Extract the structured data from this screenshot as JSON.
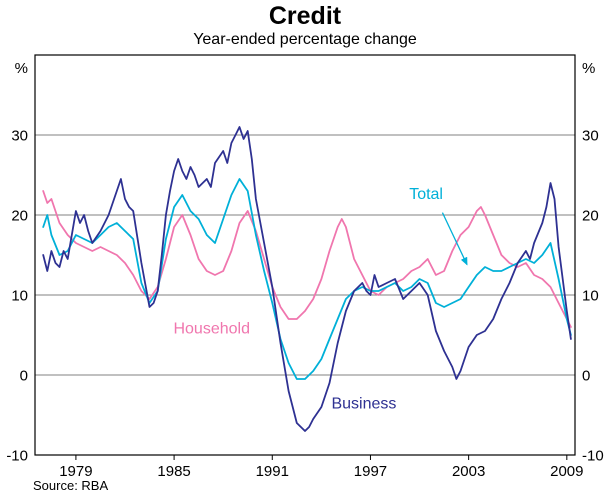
{
  "chart_data": {
    "type": "line",
    "title": "Credit",
    "subtitle": "Year-ended percentage change",
    "source": "Source: RBA",
    "unit": "%",
    "xlabel": "",
    "ylabel": "Year-ended percentage change (%)",
    "xlim": [
      1976.5,
      2009.5
    ],
    "ylim": [
      -10,
      40
    ],
    "yticks": [
      -10,
      0,
      10,
      20,
      30
    ],
    "xticks": [
      1979,
      1985,
      1991,
      1997,
      2003,
      2009
    ],
    "grid": true,
    "legend_position": "inline-annotations",
    "series": [
      {
        "name": "Household",
        "color": "#f076ae",
        "points": [
          [
            1977.0,
            23
          ],
          [
            1977.25,
            21.5
          ],
          [
            1977.5,
            22
          ],
          [
            1978.0,
            19
          ],
          [
            1978.5,
            17.5
          ],
          [
            1979.0,
            16.5
          ],
          [
            1979.5,
            16
          ],
          [
            1980.0,
            15.5
          ],
          [
            1980.5,
            16
          ],
          [
            1981.0,
            15.5
          ],
          [
            1981.5,
            15
          ],
          [
            1982.0,
            14
          ],
          [
            1982.5,
            12.5
          ],
          [
            1983.0,
            10.5
          ],
          [
            1983.5,
            9.5
          ],
          [
            1984.0,
            11
          ],
          [
            1984.5,
            14.5
          ],
          [
            1985.0,
            18.5
          ],
          [
            1985.5,
            20
          ],
          [
            1986.0,
            17.5
          ],
          [
            1986.5,
            14.5
          ],
          [
            1987.0,
            13
          ],
          [
            1987.5,
            12.5
          ],
          [
            1988.0,
            13
          ],
          [
            1988.5,
            15.5
          ],
          [
            1989.0,
            19
          ],
          [
            1989.5,
            20.5
          ],
          [
            1990.0,
            18
          ],
          [
            1990.5,
            14.5
          ],
          [
            1991.0,
            11
          ],
          [
            1991.5,
            8.5
          ],
          [
            1992.0,
            7
          ],
          [
            1992.5,
            7
          ],
          [
            1993.0,
            8
          ],
          [
            1993.5,
            9.5
          ],
          [
            1994.0,
            12
          ],
          [
            1994.5,
            15.5
          ],
          [
            1995.0,
            18.5
          ],
          [
            1995.25,
            19.5
          ],
          [
            1995.5,
            18.5
          ],
          [
            1996.0,
            14.5
          ],
          [
            1996.5,
            12.5
          ],
          [
            1997.0,
            10.5
          ],
          [
            1997.5,
            10
          ],
          [
            1998.0,
            11
          ],
          [
            1998.5,
            11.5
          ],
          [
            1999.0,
            12
          ],
          [
            1999.5,
            13
          ],
          [
            2000.0,
            13.5
          ],
          [
            2000.5,
            14.5
          ],
          [
            2001.0,
            12.5
          ],
          [
            2001.5,
            13
          ],
          [
            2002.0,
            15.5
          ],
          [
            2002.5,
            17.5
          ],
          [
            2003.0,
            18.5
          ],
          [
            2003.5,
            20.5
          ],
          [
            2003.75,
            21
          ],
          [
            2004.0,
            20
          ],
          [
            2004.5,
            17.5
          ],
          [
            2005.0,
            15
          ],
          [
            2005.5,
            14
          ],
          [
            2006.0,
            13.5
          ],
          [
            2006.5,
            14
          ],
          [
            2007.0,
            12.5
          ],
          [
            2007.5,
            12
          ],
          [
            2008.0,
            11
          ],
          [
            2008.5,
            9
          ],
          [
            2009.0,
            7
          ],
          [
            2009.25,
            6
          ]
        ]
      },
      {
        "name": "Total",
        "color": "#00b0d8",
        "points": [
          [
            1977.0,
            18.5
          ],
          [
            1977.25,
            20
          ],
          [
            1977.5,
            17.5
          ],
          [
            1978.0,
            15
          ],
          [
            1978.5,
            15.5
          ],
          [
            1979.0,
            17.5
          ],
          [
            1979.5,
            17
          ],
          [
            1980.0,
            16.5
          ],
          [
            1980.5,
            17.5
          ],
          [
            1981.0,
            18.5
          ],
          [
            1981.5,
            19
          ],
          [
            1982.0,
            18
          ],
          [
            1982.5,
            17
          ],
          [
            1983.0,
            11.5
          ],
          [
            1983.5,
            9
          ],
          [
            1984.0,
            10.5
          ],
          [
            1984.5,
            17
          ],
          [
            1985.0,
            21
          ],
          [
            1985.5,
            22.5
          ],
          [
            1986.0,
            20.5
          ],
          [
            1986.5,
            19.5
          ],
          [
            1987.0,
            17.5
          ],
          [
            1987.5,
            16.5
          ],
          [
            1988.0,
            19.5
          ],
          [
            1988.5,
            22.5
          ],
          [
            1989.0,
            24.5
          ],
          [
            1989.5,
            23
          ],
          [
            1990.0,
            17.5
          ],
          [
            1990.5,
            13
          ],
          [
            1991.0,
            9
          ],
          [
            1991.5,
            4.5
          ],
          [
            1992.0,
            1.5
          ],
          [
            1992.5,
            -0.5
          ],
          [
            1993.0,
            -0.5
          ],
          [
            1993.5,
            0.5
          ],
          [
            1994.0,
            2
          ],
          [
            1994.5,
            4.5
          ],
          [
            1995.0,
            7
          ],
          [
            1995.5,
            9.5
          ],
          [
            1996.0,
            10.5
          ],
          [
            1996.5,
            11
          ],
          [
            1997.0,
            10.5
          ],
          [
            1997.5,
            10.5
          ],
          [
            1998.0,
            11
          ],
          [
            1998.5,
            11.5
          ],
          [
            1999.0,
            10.5
          ],
          [
            1999.5,
            11
          ],
          [
            2000.0,
            12
          ],
          [
            2000.5,
            11.5
          ],
          [
            2001.0,
            9
          ],
          [
            2001.5,
            8.5
          ],
          [
            2002.0,
            9
          ],
          [
            2002.5,
            9.5
          ],
          [
            2003.0,
            11
          ],
          [
            2003.5,
            12.5
          ],
          [
            2004.0,
            13.5
          ],
          [
            2004.5,
            13
          ],
          [
            2005.0,
            13
          ],
          [
            2005.5,
            13.5
          ],
          [
            2006.0,
            14
          ],
          [
            2006.5,
            14.5
          ],
          [
            2007.0,
            14
          ],
          [
            2007.5,
            15
          ],
          [
            2008.0,
            16.5
          ],
          [
            2008.5,
            12
          ],
          [
            2009.0,
            7
          ],
          [
            2009.25,
            5
          ]
        ]
      },
      {
        "name": "Business",
        "color": "#2e3192",
        "points": [
          [
            1977.0,
            15
          ],
          [
            1977.25,
            13
          ],
          [
            1977.5,
            15.5
          ],
          [
            1977.75,
            14
          ],
          [
            1978.0,
            13.5
          ],
          [
            1978.25,
            15.5
          ],
          [
            1978.5,
            14.5
          ],
          [
            1979.0,
            20.5
          ],
          [
            1979.25,
            19
          ],
          [
            1979.5,
            20
          ],
          [
            1979.75,
            18
          ],
          [
            1980.0,
            16.5
          ],
          [
            1980.5,
            18
          ],
          [
            1981.0,
            20
          ],
          [
            1981.25,
            21.5
          ],
          [
            1981.5,
            23
          ],
          [
            1981.75,
            24.5
          ],
          [
            1982.0,
            22
          ],
          [
            1982.25,
            21
          ],
          [
            1982.5,
            20.5
          ],
          [
            1983.0,
            14
          ],
          [
            1983.5,
            8.5
          ],
          [
            1983.75,
            9
          ],
          [
            1984.0,
            10.5
          ],
          [
            1984.25,
            15
          ],
          [
            1984.5,
            20
          ],
          [
            1984.75,
            23
          ],
          [
            1985.0,
            25.5
          ],
          [
            1985.25,
            27
          ],
          [
            1985.5,
            25.5
          ],
          [
            1985.75,
            24.5
          ],
          [
            1986.0,
            26
          ],
          [
            1986.25,
            25
          ],
          [
            1986.5,
            23.5
          ],
          [
            1987.0,
            24.5
          ],
          [
            1987.25,
            23.5
          ],
          [
            1987.5,
            26.5
          ],
          [
            1988.0,
            28
          ],
          [
            1988.25,
            26.5
          ],
          [
            1988.5,
            29
          ],
          [
            1988.75,
            30
          ],
          [
            1989.0,
            31
          ],
          [
            1989.25,
            29.5
          ],
          [
            1989.5,
            30.5
          ],
          [
            1989.75,
            27
          ],
          [
            1990.0,
            22
          ],
          [
            1990.5,
            16.5
          ],
          [
            1991.0,
            11
          ],
          [
            1991.5,
            4
          ],
          [
            1992.0,
            -2
          ],
          [
            1992.5,
            -6
          ],
          [
            1993.0,
            -7
          ],
          [
            1993.25,
            -6.5
          ],
          [
            1993.5,
            -5.5
          ],
          [
            1994.0,
            -4
          ],
          [
            1994.5,
            -1
          ],
          [
            1995.0,
            4
          ],
          [
            1995.5,
            8
          ],
          [
            1996.0,
            10.5
          ],
          [
            1996.5,
            11.5
          ],
          [
            1996.75,
            10.5
          ],
          [
            1997.0,
            10
          ],
          [
            1997.25,
            12.5
          ],
          [
            1997.5,
            11
          ],
          [
            1998.0,
            11.5
          ],
          [
            1998.5,
            12
          ],
          [
            1999.0,
            9.5
          ],
          [
            1999.5,
            10.5
          ],
          [
            2000.0,
            11.5
          ],
          [
            2000.5,
            10
          ],
          [
            2001.0,
            5.5
          ],
          [
            2001.5,
            3
          ],
          [
            2002.0,
            1
          ],
          [
            2002.25,
            -0.5
          ],
          [
            2002.5,
            0.5
          ],
          [
            2003.0,
            3.5
          ],
          [
            2003.5,
            5
          ],
          [
            2004.0,
            5.5
          ],
          [
            2004.5,
            7
          ],
          [
            2005.0,
            9.5
          ],
          [
            2005.5,
            11.5
          ],
          [
            2006.0,
            14
          ],
          [
            2006.5,
            15.5
          ],
          [
            2006.75,
            14.5
          ],
          [
            2007.0,
            16.5
          ],
          [
            2007.5,
            19
          ],
          [
            2007.75,
            21
          ],
          [
            2008.0,
            24
          ],
          [
            2008.25,
            22
          ],
          [
            2008.5,
            16
          ],
          [
            2008.75,
            12
          ],
          [
            2009.0,
            8
          ],
          [
            2009.25,
            4.5
          ]
        ]
      }
    ],
    "annotations": [
      {
        "text": "Total",
        "color": "#00b0d8",
        "x": 2000.4,
        "y": 22,
        "arrow": {
          "x1": 2001.4,
          "y1": 20.3,
          "x2": 2002.9,
          "y2": 13.8
        }
      },
      {
        "text": "Household",
        "color": "#f076ae",
        "x": 1987.3,
        "y": 5.2
      },
      {
        "text": "Business",
        "color": "#2e3192",
        "x": 1996.6,
        "y": -4.2
      }
    ]
  }
}
